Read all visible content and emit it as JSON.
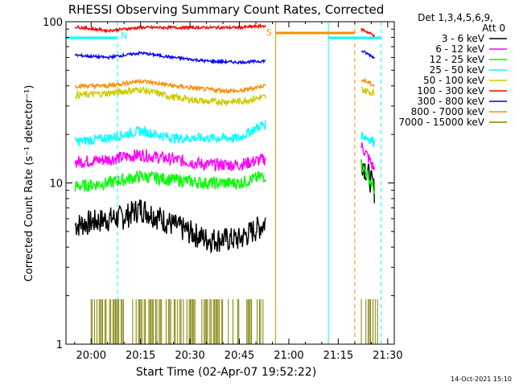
{
  "chart_data": {
    "type": "line",
    "title": "RHESSI Observing Summary Count Rates, Corrected",
    "xlabel": "Start Time (02-Apr-07 19:52:22)",
    "ylabel": "Corrected Count Rate (s⁻¹ detector⁻¹)",
    "yscale": "log",
    "ylim": [
      1,
      100
    ],
    "xlim": [
      "19:52:22",
      "21:32:00"
    ],
    "x_ticks": [
      "20:00",
      "20:15",
      "20:30",
      "20:45",
      "21:00",
      "21:15",
      "21:30"
    ],
    "y_ticks": [
      "1",
      "10",
      "100"
    ],
    "legend_title": [
      "Det 1,3,4,5,6,9,",
      "Att 0"
    ],
    "legend_position": "right",
    "timestamp": "14-Oct-2021 15:10",
    "annotations": {
      "night_label": "N",
      "saa_label": "S"
    },
    "vlines_cyan_dashed": [
      "20:08",
      "21:28"
    ],
    "vlines_cyan_solid": [
      "21:12"
    ],
    "vlines_orange_dashed": [
      "21:20"
    ],
    "vlines_orange_solid": [
      "20:56"
    ],
    "series": [
      {
        "name": "3 - 6 keV",
        "color": "#000000",
        "x": [
          "19:55",
          "20:05",
          "20:10",
          "20:15",
          "20:25",
          "20:35",
          "20:45",
          "20:52",
          "21:22",
          "21:26"
        ],
        "values": [
          5.5,
          6.0,
          6.2,
          7.0,
          5.5,
          4.5,
          4.5,
          5.5,
          14,
          9
        ]
      },
      {
        "name": "6 - 12 keV",
        "color": "#ff00ff",
        "x": [
          "19:55",
          "20:05",
          "20:15",
          "20:25",
          "20:35",
          "20:45",
          "20:52",
          "21:22",
          "21:26"
        ],
        "values": [
          13.5,
          14,
          15,
          14,
          13,
          13,
          14,
          17,
          12
        ]
      },
      {
        "name": "12 - 25 keV",
        "color": "#00ff00",
        "x": [
          "19:55",
          "20:05",
          "20:15",
          "20:25",
          "20:35",
          "20:45",
          "20:52",
          "21:22",
          "21:26"
        ],
        "values": [
          9.5,
          10,
          11,
          10.5,
          10,
          10,
          11,
          13,
          9
        ]
      },
      {
        "name": "25 - 50 keV",
        "color": "#00ffff",
        "x": [
          "19:55",
          "20:05",
          "20:15",
          "20:25",
          "20:35",
          "20:45",
          "20:52",
          "21:22",
          "21:26"
        ],
        "values": [
          18,
          19,
          21,
          19,
          19,
          19,
          23,
          20,
          18
        ]
      },
      {
        "name": "50 - 100 keV",
        "color": "#cccc00",
        "x": [
          "19:55",
          "20:05",
          "20:15",
          "20:25",
          "20:35",
          "20:45",
          "20:52",
          "21:22",
          "21:26"
        ],
        "values": [
          35,
          36,
          38,
          34,
          32,
          32,
          34,
          38,
          36
        ]
      },
      {
        "name": "100 - 300 keV",
        "color": "#ff0000",
        "x": [
          "19:55",
          "20:05",
          "20:15",
          "20:25",
          "20:35",
          "20:45",
          "20:52",
          "21:22",
          "21:26"
        ],
        "values": [
          93,
          88,
          92,
          92,
          92,
          92,
          94,
          90,
          82
        ]
      },
      {
        "name": "300 - 800 keV",
        "color": "#0000ff",
        "x": [
          "19:55",
          "20:05",
          "20:15",
          "20:25",
          "20:35",
          "20:45",
          "20:52",
          "21:22",
          "21:26"
        ],
        "values": [
          62,
          60,
          64,
          60,
          57,
          56,
          57,
          66,
          60
        ]
      },
      {
        "name": "800 - 7000 keV",
        "color": "#ff8c00",
        "x": [
          "19:55",
          "20:05",
          "20:15",
          "20:25",
          "20:35",
          "20:45",
          "20:52",
          "21:22",
          "21:26"
        ],
        "values": [
          40,
          40,
          43,
          40,
          38,
          37,
          40,
          44,
          40
        ]
      },
      {
        "name": "7000 - 15000 keV",
        "color": "#808000",
        "x": [
          "20:00",
          "20:10",
          "20:20",
          "20:30",
          "20:40",
          "20:52",
          "21:22",
          "21:26"
        ],
        "values": [
          1.9,
          1.9,
          1.9,
          1.9,
          1.9,
          1.9,
          1.9,
          1.9
        ]
      }
    ]
  }
}
